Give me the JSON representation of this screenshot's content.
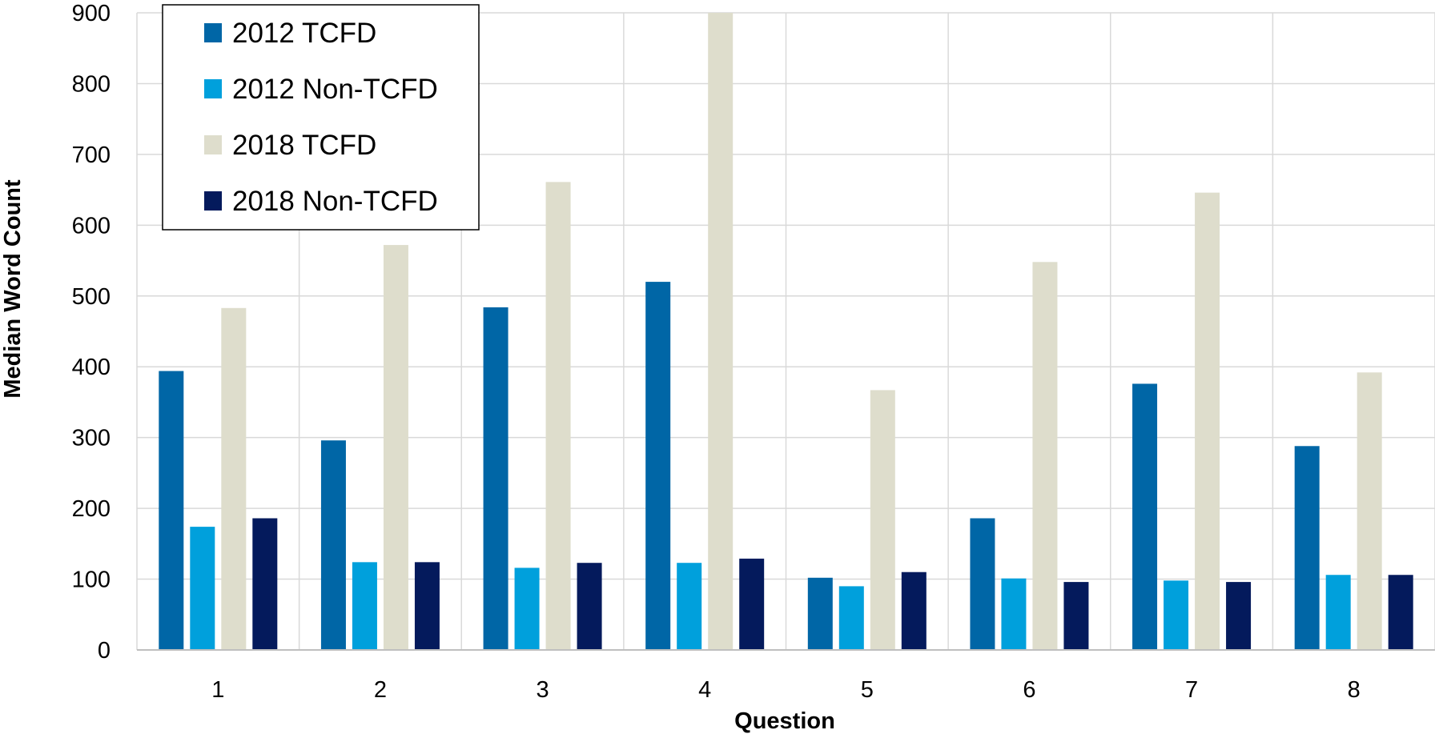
{
  "chart_data": {
    "type": "bar",
    "title": "",
    "xlabel": "Question",
    "ylabel": "Median Word Count",
    "categories": [
      "1",
      "2",
      "3",
      "4",
      "5",
      "6",
      "7",
      "8"
    ],
    "ylim": [
      0,
      900
    ],
    "yticks": [
      0,
      100,
      200,
      300,
      400,
      500,
      600,
      700,
      800,
      900
    ],
    "ytick_labels": [
      "0",
      "100",
      "200",
      "300",
      "400",
      "500",
      "600",
      "700",
      "800",
      "900"
    ],
    "grid": true,
    "legend_position": "top-left",
    "series": [
      {
        "name": "2012 TCFD",
        "color": "#0066A6",
        "values": [
          394,
          296,
          484,
          520,
          102,
          186,
          376,
          288
        ]
      },
      {
        "name": "2012 Non-TCFD",
        "color": "#00A0DC",
        "values": [
          174,
          124,
          116,
          123,
          90,
          101,
          98,
          106
        ]
      },
      {
        "name": "2018 TCFD",
        "color": "#DEDDCC",
        "values": [
          483,
          572,
          661,
          900,
          367,
          548,
          646,
          392
        ]
      },
      {
        "name": "2018 Non-TCFD",
        "color": "#041A5C",
        "values": [
          186,
          124,
          123,
          129,
          110,
          96,
          96,
          106
        ]
      }
    ]
  }
}
